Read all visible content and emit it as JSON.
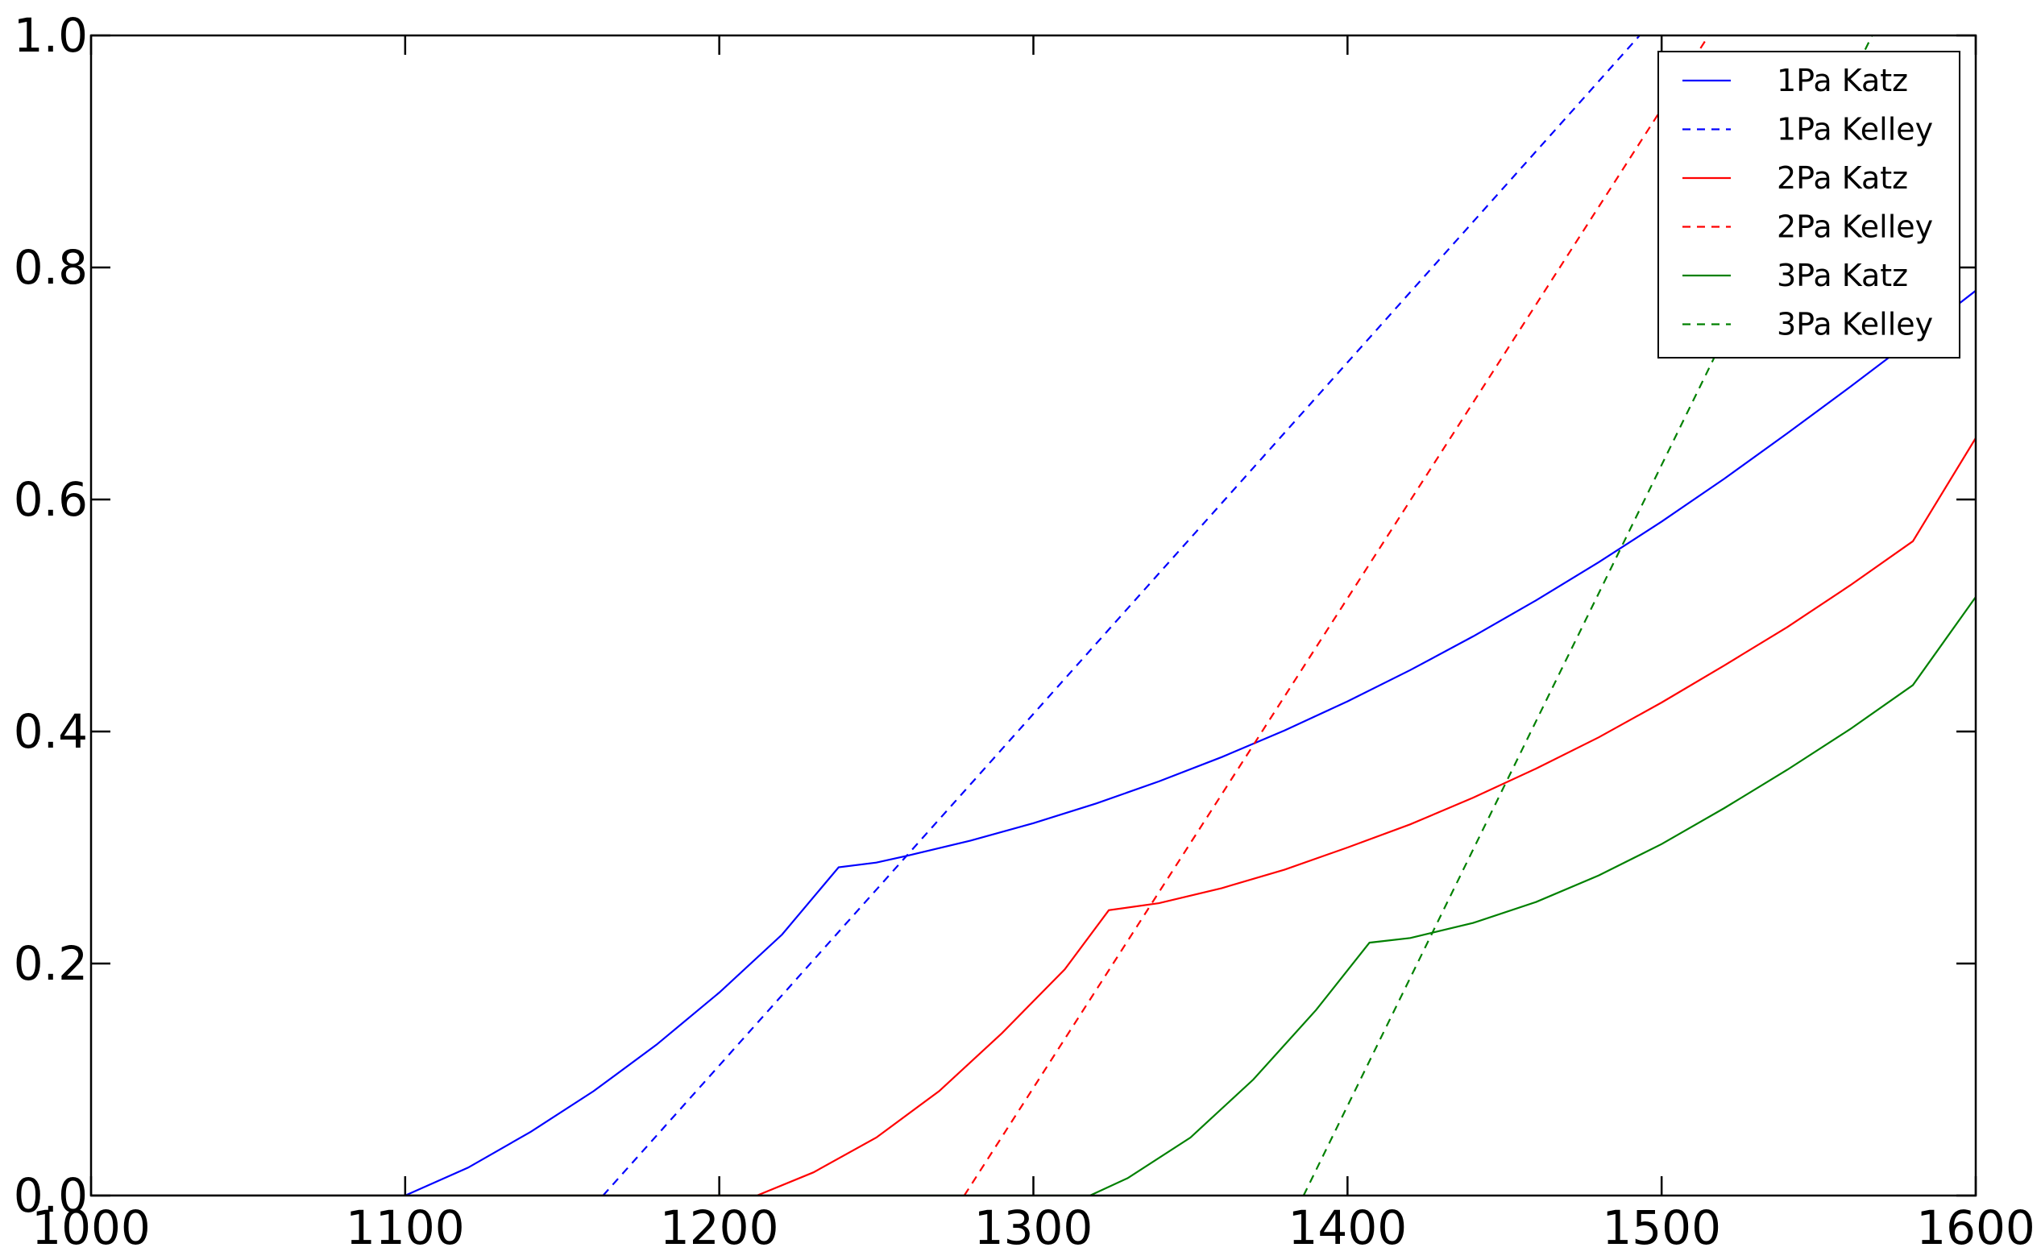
{
  "chart_data": {
    "type": "line",
    "title": "",
    "xlabel": "",
    "ylabel": "",
    "xlim": [
      1000,
      1600
    ],
    "ylim": [
      0,
      1.0
    ],
    "xticks": [
      1000,
      1100,
      1200,
      1300,
      1400,
      1500,
      1600
    ],
    "yticks": [
      0.0,
      0.2,
      0.4,
      0.6,
      0.8,
      1.0
    ],
    "xtick_labels": [
      "1000",
      "1100",
      "1200",
      "1300",
      "1400",
      "1500",
      "1600"
    ],
    "ytick_labels": [
      "0.0",
      "0.2",
      "0.4",
      "0.6",
      "0.8",
      "1.0"
    ],
    "grid": false,
    "legend_position": "top-right",
    "series": [
      {
        "name": "1Pa Katz",
        "color": "#0000ff",
        "style": "solid",
        "points": [
          [
            1000,
            0
          ],
          [
            1100,
            0
          ],
          [
            1120,
            0.024
          ],
          [
            1140,
            0.055
          ],
          [
            1160,
            0.09
          ],
          [
            1180,
            0.13
          ],
          [
            1200,
            0.175
          ],
          [
            1220,
            0.225
          ],
          [
            1238,
            0.283
          ],
          [
            1250,
            0.287
          ],
          [
            1260,
            0.293
          ],
          [
            1280,
            0.306
          ],
          [
            1300,
            0.321
          ],
          [
            1320,
            0.338
          ],
          [
            1340,
            0.357
          ],
          [
            1360,
            0.378
          ],
          [
            1380,
            0.401
          ],
          [
            1400,
            0.426
          ],
          [
            1420,
            0.453
          ],
          [
            1440,
            0.482
          ],
          [
            1460,
            0.513
          ],
          [
            1480,
            0.546
          ],
          [
            1500,
            0.581
          ],
          [
            1520,
            0.618
          ],
          [
            1540,
            0.657
          ],
          [
            1560,
            0.697
          ],
          [
            1580,
            0.738
          ],
          [
            1600,
            0.78
          ]
        ]
      },
      {
        "name": "1Pa Kelley",
        "color": "#0000ff",
        "style": "dashed",
        "points": [
          [
            1163,
            0
          ],
          [
            1493,
            1.0
          ]
        ]
      },
      {
        "name": "2Pa Katz",
        "color": "#ff0000",
        "style": "solid",
        "points": [
          [
            1000,
            0
          ],
          [
            1212,
            0
          ],
          [
            1230,
            0.02
          ],
          [
            1250,
            0.05
          ],
          [
            1270,
            0.09
          ],
          [
            1290,
            0.14
          ],
          [
            1310,
            0.195
          ],
          [
            1324,
            0.246
          ],
          [
            1340,
            0.252
          ],
          [
            1360,
            0.265
          ],
          [
            1380,
            0.281
          ],
          [
            1400,
            0.3
          ],
          [
            1420,
            0.32
          ],
          [
            1440,
            0.343
          ],
          [
            1460,
            0.368
          ],
          [
            1480,
            0.395
          ],
          [
            1500,
            0.425
          ],
          [
            1520,
            0.457
          ],
          [
            1540,
            0.49
          ],
          [
            1560,
            0.526
          ],
          [
            1580,
            0.564
          ],
          [
            1600,
            0.653
          ]
        ]
      },
      {
        "name": "2Pa Kelley",
        "color": "#ff0000",
        "style": "dashed",
        "points": [
          [
            1278,
            0
          ],
          [
            1515,
            1.0
          ]
        ]
      },
      {
        "name": "3Pa Katz",
        "color": "#008000",
        "style": "solid",
        "points": [
          [
            1000,
            0
          ],
          [
            1318,
            0
          ],
          [
            1330,
            0.015
          ],
          [
            1350,
            0.05
          ],
          [
            1370,
            0.1
          ],
          [
            1390,
            0.16
          ],
          [
            1407,
            0.218
          ],
          [
            1420,
            0.222
          ],
          [
            1440,
            0.235
          ],
          [
            1460,
            0.253
          ],
          [
            1480,
            0.276
          ],
          [
            1500,
            0.303
          ],
          [
            1520,
            0.334
          ],
          [
            1540,
            0.367
          ],
          [
            1560,
            0.402
          ],
          [
            1580,
            0.44
          ],
          [
            1600,
            0.516
          ]
        ]
      },
      {
        "name": "3Pa Kelley",
        "color": "#008000",
        "style": "dashed",
        "points": [
          [
            1386,
            0
          ],
          [
            1567,
            1.0
          ]
        ]
      }
    ]
  }
}
